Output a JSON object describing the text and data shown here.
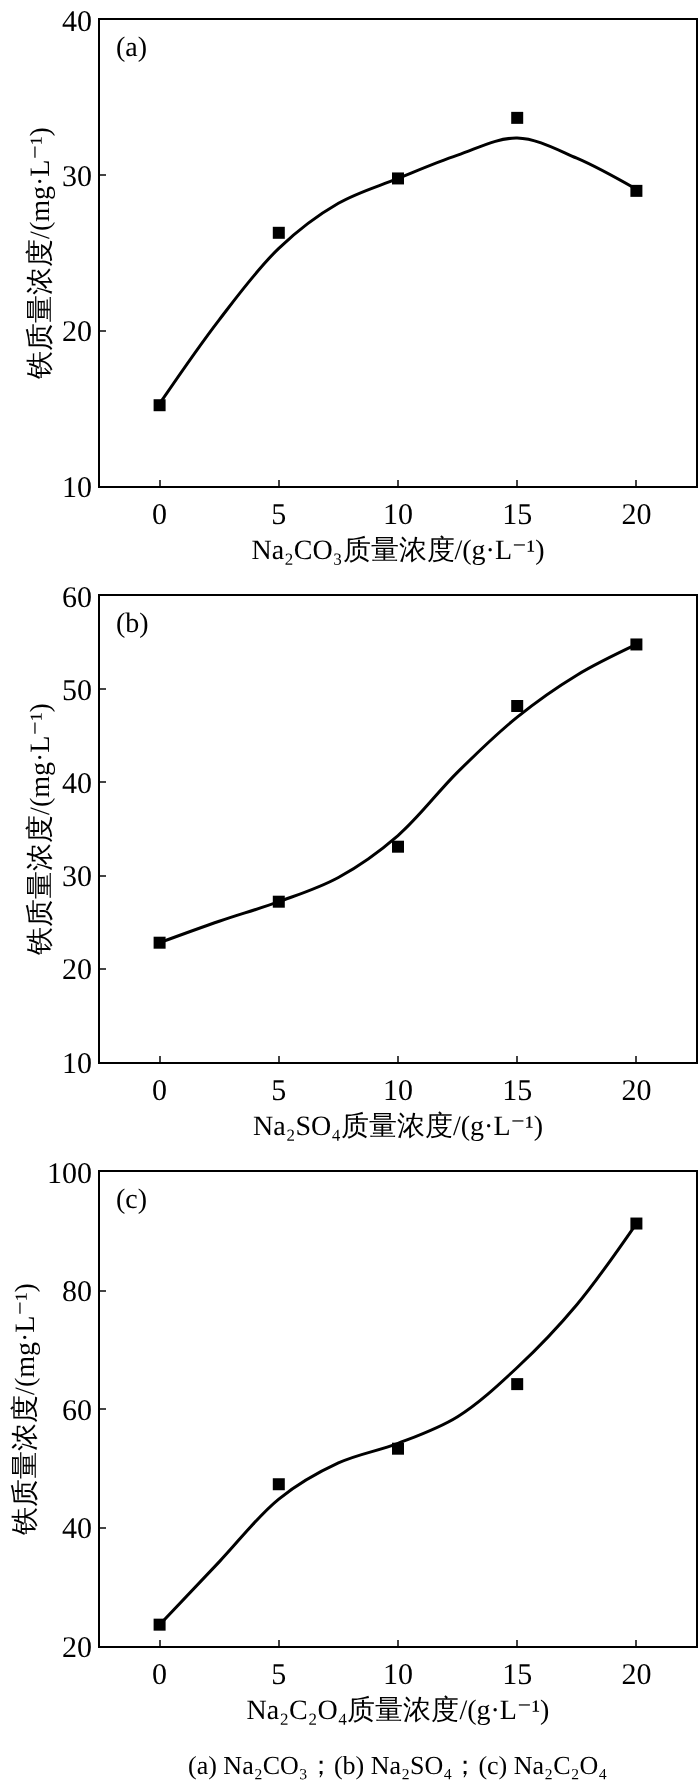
{
  "chart_data": [
    {
      "type": "scatter",
      "xlabel": "Na₂CO₃质量浓度/(g·L⁻¹)",
      "ylabel": "铁质量浓度/(mg·L⁻¹)",
      "annotations": [
        "(a)"
      ],
      "series": [
        {
          "type": "scatter",
          "marker": "square",
          "color": "#000000",
          "x": [
            0,
            5,
            10,
            15,
            20
          ],
          "values": [
            15.2,
            26.3,
            29.8,
            33.7,
            29.0
          ]
        },
        {
          "type": "line",
          "marker": "none",
          "line_style": "solid",
          "color": "#000000",
          "x": [
            0,
            2.5,
            5,
            7.5,
            10,
            12.5,
            15,
            17.5,
            20
          ],
          "values": [
            15.3,
            20.7,
            25.3,
            28.2,
            29.8,
            31.3,
            32.4,
            31.1,
            29.1
          ]
        }
      ],
      "xlim": [
        -2.5,
        22.5
      ],
      "xticks": [
        0,
        5,
        10,
        15,
        20
      ],
      "ylim": [
        10,
        40
      ],
      "yticks": [
        10,
        20,
        30,
        40
      ],
      "grid": false
    },
    {
      "type": "scatter",
      "xlabel": "Na₂SO₄质量浓度/(g·L⁻¹)",
      "ylabel": "铁质量浓度/(mg·L⁻¹)",
      "annotations": [
        "(b)"
      ],
      "series": [
        {
          "type": "scatter",
          "marker": "square",
          "color": "#000000",
          "x": [
            0,
            5,
            10,
            15,
            20
          ],
          "values": [
            22.8,
            27.2,
            33.1,
            48.2,
            54.8
          ]
        },
        {
          "type": "line",
          "marker": "none",
          "line_style": "solid",
          "color": "#000000",
          "x": [
            0,
            2.5,
            5,
            7.5,
            10,
            12.5,
            15,
            17.5,
            20
          ],
          "values": [
            22.8,
            25.1,
            27.2,
            29.8,
            34.3,
            41.1,
            47.0,
            51.5,
            54.8
          ]
        }
      ],
      "xlim": [
        -2.5,
        22.5
      ],
      "xticks": [
        0,
        5,
        10,
        15,
        20
      ],
      "ylim": [
        10,
        60
      ],
      "yticks": [
        10,
        20,
        30,
        40,
        50,
        60
      ],
      "grid": false
    },
    {
      "type": "scatter",
      "xlabel": "Na₂C₂O₄质量浓度/(g·L⁻¹)",
      "ylabel": "铁质量浓度/(mg·L⁻¹)",
      "annotations": [
        "(c)",
        "(a) Na₂CO₃；(b) Na₂SO₄；(c) Na₂C₂O₄"
      ],
      "series": [
        {
          "type": "scatter",
          "marker": "square",
          "color": "#000000",
          "x": [
            0,
            5,
            10,
            15,
            20
          ],
          "values": [
            23.6,
            47.3,
            53.3,
            64.2,
            91.3
          ]
        },
        {
          "type": "line",
          "marker": "none",
          "line_style": "solid",
          "color": "#000000",
          "x": [
            0,
            2.5,
            5,
            7.5,
            10,
            12.5,
            15,
            17.5,
            20
          ],
          "values": [
            23.6,
            34.2,
            44.8,
            50.9,
            54.2,
            58.7,
            67.0,
            77.6,
            91.3
          ]
        }
      ],
      "xlim": [
        -2.5,
        22.5
      ],
      "xticks": [
        0,
        5,
        10,
        15,
        20
      ],
      "ylim": [
        20,
        100
      ],
      "yticks": [
        20,
        40,
        60,
        80,
        100
      ],
      "grid": false
    }
  ]
}
